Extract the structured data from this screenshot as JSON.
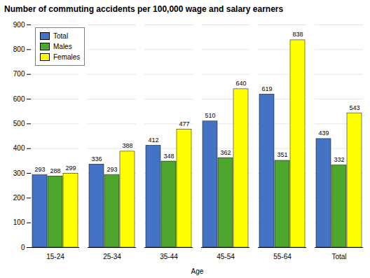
{
  "chart_data": {
    "type": "bar",
    "title": "Number of commuting accidents per 100,000 wage and salary earners",
    "xlabel": "Age",
    "categories": [
      "15-24",
      "25-34",
      "35-44",
      "45-54",
      "55-64",
      "Total"
    ],
    "series": [
      {
        "name": "Total",
        "color": "#4472c4",
        "values": [
          293,
          336,
          412,
          510,
          619,
          439
        ]
      },
      {
        "name": "Males",
        "color": "#4ea72c",
        "values": [
          288,
          293,
          348,
          362,
          351,
          332
        ]
      },
      {
        "name": "Females",
        "color": "#ffff00",
        "values": [
          299,
          388,
          477,
          640,
          838,
          543
        ]
      }
    ],
    "ylim": [
      0,
      900
    ],
    "yticks": [
      0,
      100,
      200,
      300,
      400,
      500,
      600,
      700,
      800,
      900
    ],
    "grid": true,
    "legend": "upper left",
    "data_labels": true
  }
}
